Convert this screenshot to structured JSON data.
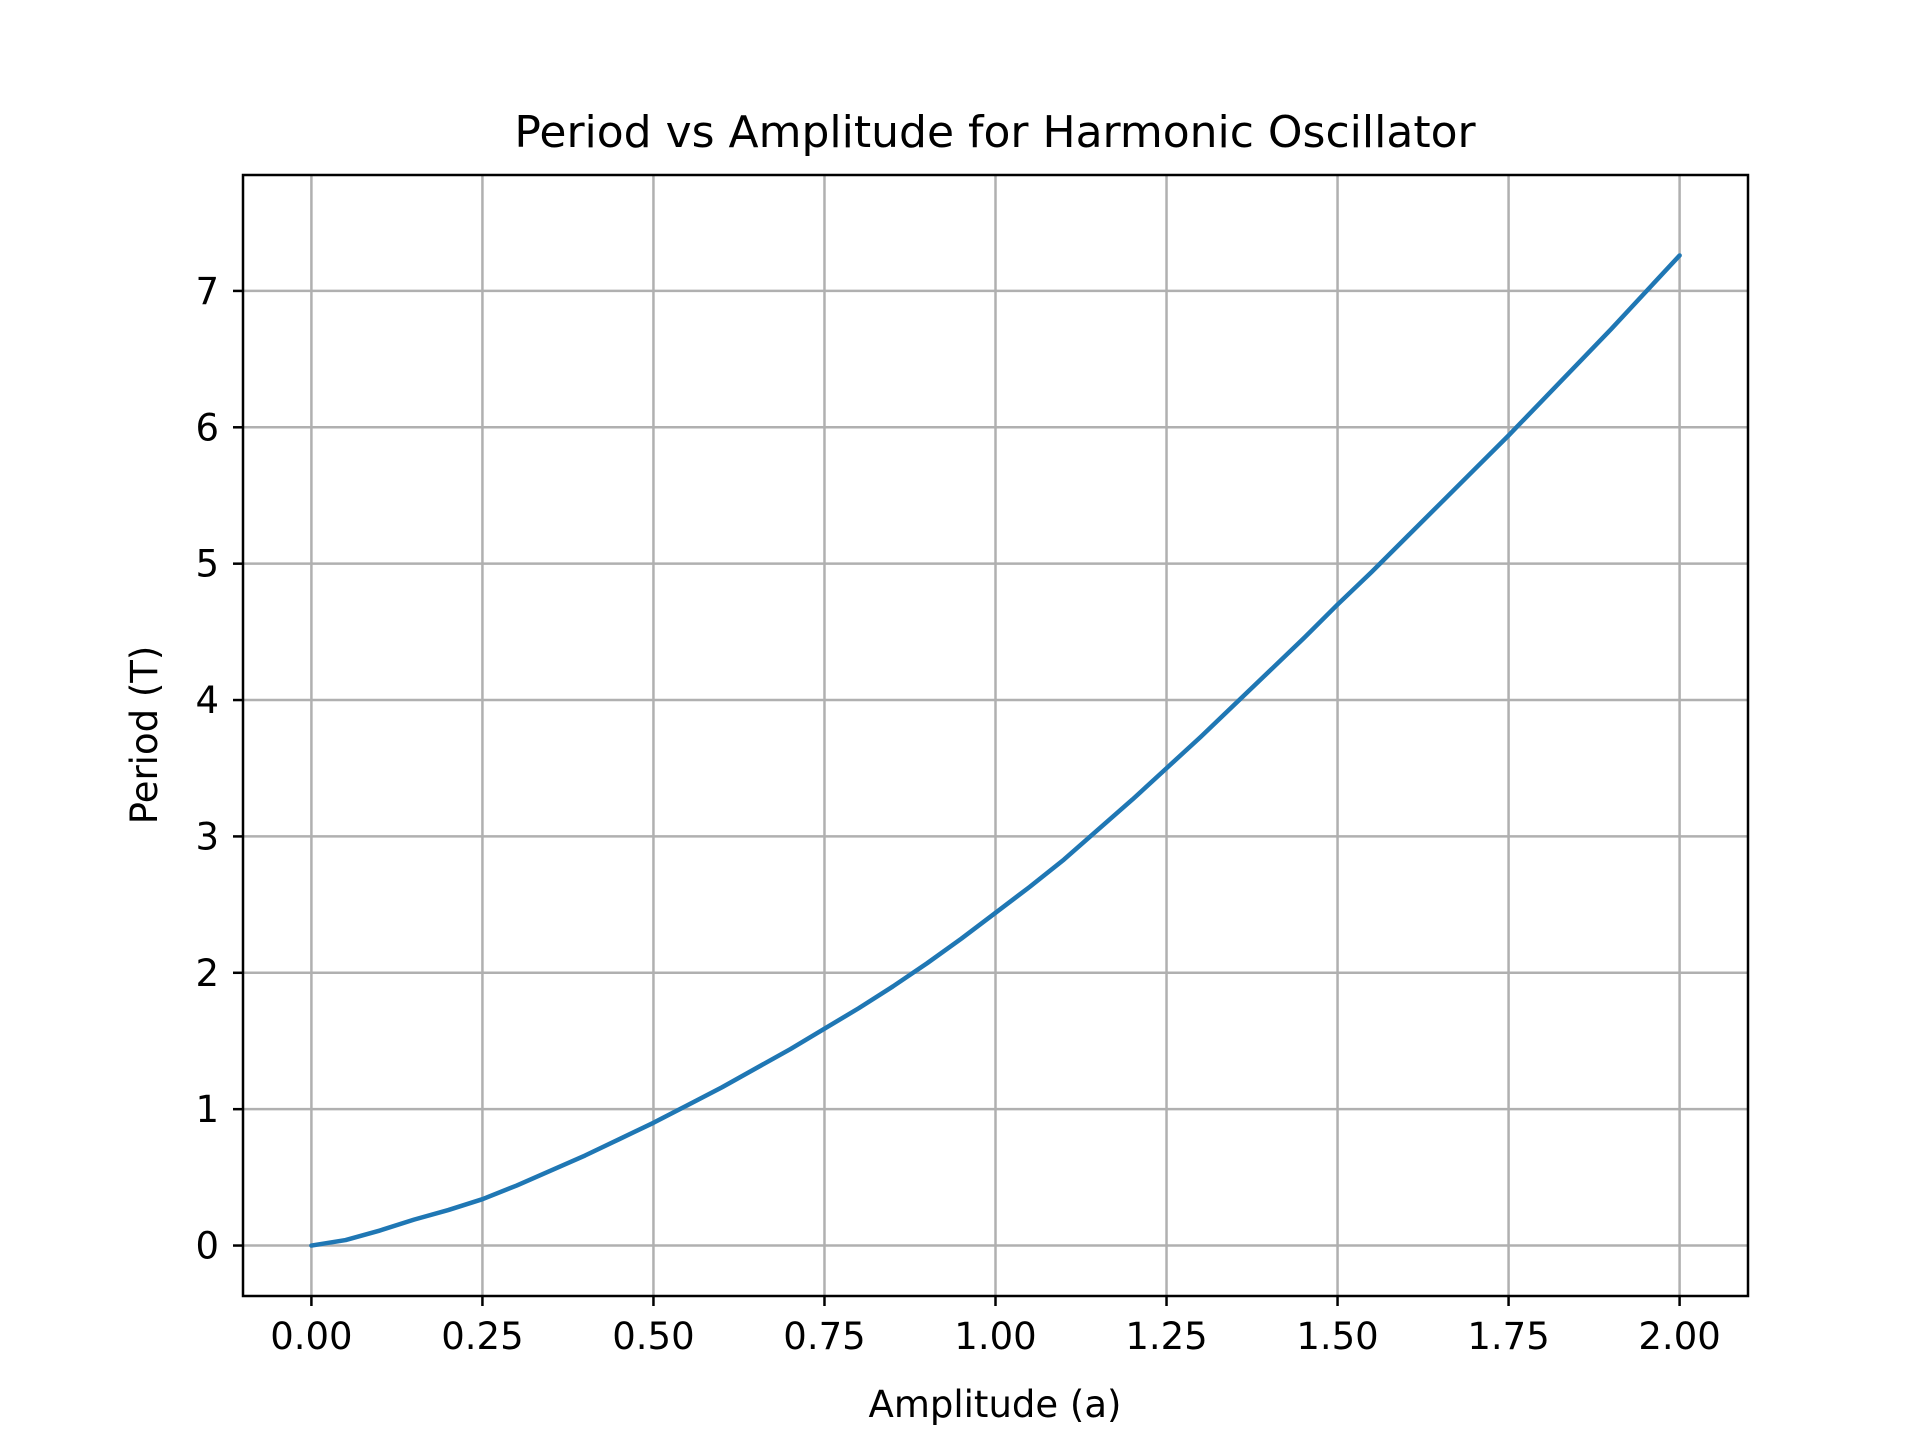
{
  "chart_data": {
    "type": "line",
    "title": "Period vs Amplitude for Harmonic Oscillator",
    "xlabel": "Amplitude (a)",
    "ylabel": "Period (T)",
    "xlim": [
      -0.1,
      2.1
    ],
    "ylim": [
      -0.37,
      7.85
    ],
    "xticks": [
      0.0,
      0.25,
      0.5,
      0.75,
      1.0,
      1.25,
      1.5,
      1.75,
      2.0
    ],
    "xtick_labels": [
      "0.00",
      "0.25",
      "0.50",
      "0.75",
      "1.00",
      "1.25",
      "1.50",
      "1.75",
      "2.00"
    ],
    "yticks": [
      0,
      1,
      2,
      3,
      4,
      5,
      6,
      7
    ],
    "ytick_labels": [
      "0",
      "1",
      "2",
      "3",
      "4",
      "5",
      "6",
      "7"
    ],
    "grid": true,
    "legend": false,
    "colors": {
      "line": "#1f77b4",
      "grid": "#b0b0b0",
      "frame": "#000000"
    },
    "series": [
      {
        "x": [
          0.0,
          0.05,
          0.1,
          0.15,
          0.2,
          0.25,
          0.3,
          0.35,
          0.4,
          0.45,
          0.5,
          0.55,
          0.6,
          0.65,
          0.7,
          0.75,
          0.8,
          0.85,
          0.9,
          0.95,
          1.0,
          1.05,
          1.1,
          1.15,
          1.2,
          1.25,
          1.3,
          1.35,
          1.4,
          1.45,
          1.5,
          1.55,
          1.6,
          1.65,
          1.7,
          1.75,
          1.8,
          1.85,
          1.9,
          1.95,
          2.0
        ],
        "y": [
          0.0,
          0.04,
          0.11,
          0.19,
          0.26,
          0.34,
          0.44,
          0.55,
          0.66,
          0.78,
          0.9,
          1.03,
          1.16,
          1.3,
          1.44,
          1.59,
          1.74,
          1.9,
          2.07,
          2.25,
          2.44,
          2.63,
          2.83,
          3.05,
          3.27,
          3.5,
          3.73,
          3.97,
          4.21,
          4.45,
          4.7,
          4.94,
          5.19,
          5.44,
          5.69,
          5.94,
          6.2,
          6.46,
          6.72,
          6.99,
          7.26
        ]
      }
    ]
  }
}
